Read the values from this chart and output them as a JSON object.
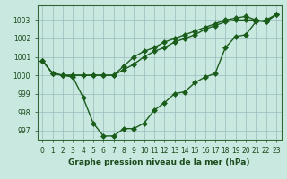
{
  "xlabel": "Graphe pression niveau de la mer (hPa)",
  "background_color": "#c8e8e0",
  "plot_bg_color": "#c8e8e0",
  "grid_color": "#99bbbb",
  "line_color": "#1a5c1a",
  "xlim": [
    -0.5,
    23.5
  ],
  "ylim": [
    996.5,
    1003.8
  ],
  "yticks": [
    997,
    998,
    999,
    1000,
    1001,
    1002,
    1003
  ],
  "xticks": [
    0,
    1,
    2,
    3,
    4,
    5,
    6,
    7,
    8,
    9,
    10,
    11,
    12,
    13,
    14,
    15,
    16,
    17,
    18,
    19,
    20,
    21,
    22,
    23
  ],
  "series1": [
    1000.8,
    1000.1,
    1000.0,
    999.9,
    998.8,
    997.4,
    996.7,
    996.7,
    997.1,
    997.1,
    997.4,
    998.1,
    998.5,
    999.0,
    999.1,
    999.6,
    999.9,
    1000.1,
    1001.5,
    1002.1,
    1002.2,
    1002.9,
    1003.0,
    1003.3
  ],
  "series2": [
    1000.8,
    1000.1,
    1000.0,
    1000.0,
    1000.0,
    1000.0,
    1000.0,
    1000.0,
    1000.5,
    1001.0,
    1001.3,
    1001.5,
    1001.8,
    1002.0,
    1002.2,
    1002.4,
    1002.6,
    1002.8,
    1003.0,
    1003.1,
    1003.2,
    1003.0,
    1002.9,
    1003.3
  ],
  "series3": [
    1000.8,
    1000.1,
    1000.0,
    1000.0,
    1000.0,
    1000.0,
    1000.0,
    1000.0,
    1000.3,
    1000.6,
    1001.0,
    1001.3,
    1001.5,
    1001.8,
    1002.0,
    1002.2,
    1002.5,
    1002.7,
    1002.9,
    1003.0,
    1003.0,
    1003.0,
    1002.9,
    1003.3
  ],
  "marker_size": 3,
  "line_width": 1.0,
  "font_size_ticks": 5.5,
  "font_size_xlabel": 6.5
}
